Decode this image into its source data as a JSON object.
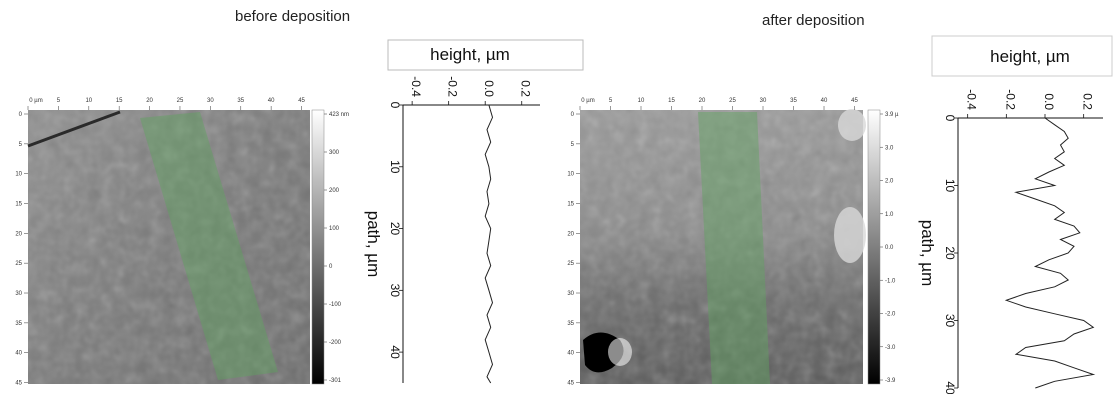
{
  "panels": [
    {
      "title": "before deposition",
      "afm_map": {
        "axis_unit": "0 µm",
        "x_ticks": [
          0,
          5,
          10,
          15,
          20,
          25,
          30,
          35,
          40,
          45
        ],
        "y_ticks": [
          0,
          5,
          10,
          15,
          20,
          25,
          30,
          35,
          40,
          45
        ],
        "colorbar_ticks": [
          "423 nm",
          "300",
          "200",
          "100",
          "0",
          "-100",
          "-200",
          "-301"
        ],
        "highlight_color": "#5fa35f"
      },
      "profile": {
        "xlabel": "height, µm",
        "ylabel": "path, µm",
        "x_ticks": [
          "-0.4",
          "-0.2",
          "0.0",
          "0.2"
        ],
        "y_ticks": [
          "0",
          "10",
          "20",
          "30",
          "40"
        ]
      }
    },
    {
      "title": "after deposition",
      "afm_map": {
        "axis_unit": "0 µm",
        "x_ticks": [
          0,
          5,
          10,
          15,
          20,
          25,
          30,
          35,
          40,
          45
        ],
        "y_ticks": [
          0,
          5,
          10,
          15,
          20,
          25,
          30,
          35,
          40,
          45
        ],
        "colorbar_ticks": [
          "3.9 µ",
          "3.0",
          "2.0",
          "1.0",
          "0.0",
          "-1.0",
          "-2.0",
          "-3.0",
          "-3.9"
        ],
        "highlight_color": "#5fa35f"
      },
      "profile": {
        "xlabel": "height, µm",
        "ylabel": "path, µm",
        "x_ticks": [
          "-0.4",
          "-0.2",
          "0.0",
          "0.2"
        ],
        "y_ticks": [
          "0",
          "10",
          "20",
          "30",
          "40"
        ]
      }
    }
  ],
  "chart_data": [
    {
      "type": "line",
      "title": "before deposition",
      "xlabel": "height, µm",
      "ylabel": "path, µm",
      "xlim": [
        -0.45,
        0.3
      ],
      "ylim": [
        0,
        45
      ],
      "series": [
        {
          "path": [
            0,
            2,
            4,
            6,
            8,
            10,
            12,
            14,
            16,
            18,
            20,
            22,
            24,
            26,
            28,
            30,
            32,
            34,
            36,
            38,
            40,
            42,
            44,
            45
          ],
          "height": [
            0.02,
            0.04,
            0.01,
            0.03,
            0.0,
            0.02,
            0.03,
            0.01,
            0.02,
            0.0,
            0.03,
            0.02,
            0.01,
            0.03,
            0.0,
            0.02,
            0.04,
            0.01,
            0.03,
            0.0,
            0.02,
            0.04,
            0.01,
            0.03
          ]
        }
      ]
    },
    {
      "type": "line",
      "title": "after deposition",
      "xlabel": "height, µm",
      "ylabel": "path, µm",
      "xlim": [
        -0.45,
        0.3
      ],
      "ylim": [
        0,
        40
      ],
      "series": [
        {
          "path": [
            0,
            1,
            2,
            3,
            4,
            5,
            6,
            7,
            8,
            9,
            10,
            11,
            12,
            13,
            14,
            15,
            16,
            17,
            18,
            19,
            20,
            21,
            22,
            23,
            24,
            25,
            26,
            27,
            28,
            29,
            30,
            31,
            32,
            33,
            34,
            35,
            36,
            37,
            38,
            39,
            40
          ],
          "height": [
            0.0,
            0.05,
            0.1,
            0.12,
            0.08,
            0.1,
            0.05,
            0.1,
            0.02,
            -0.05,
            0.05,
            -0.15,
            -0.05,
            0.05,
            0.1,
            0.05,
            0.15,
            0.18,
            0.08,
            0.15,
            0.12,
            0.02,
            -0.05,
            0.08,
            0.12,
            0.05,
            -0.1,
            -0.2,
            -0.1,
            0.05,
            0.2,
            0.25,
            0.15,
            0.1,
            -0.1,
            -0.15,
            0.05,
            0.15,
            0.25,
            0.05,
            -0.05
          ]
        }
      ]
    }
  ]
}
